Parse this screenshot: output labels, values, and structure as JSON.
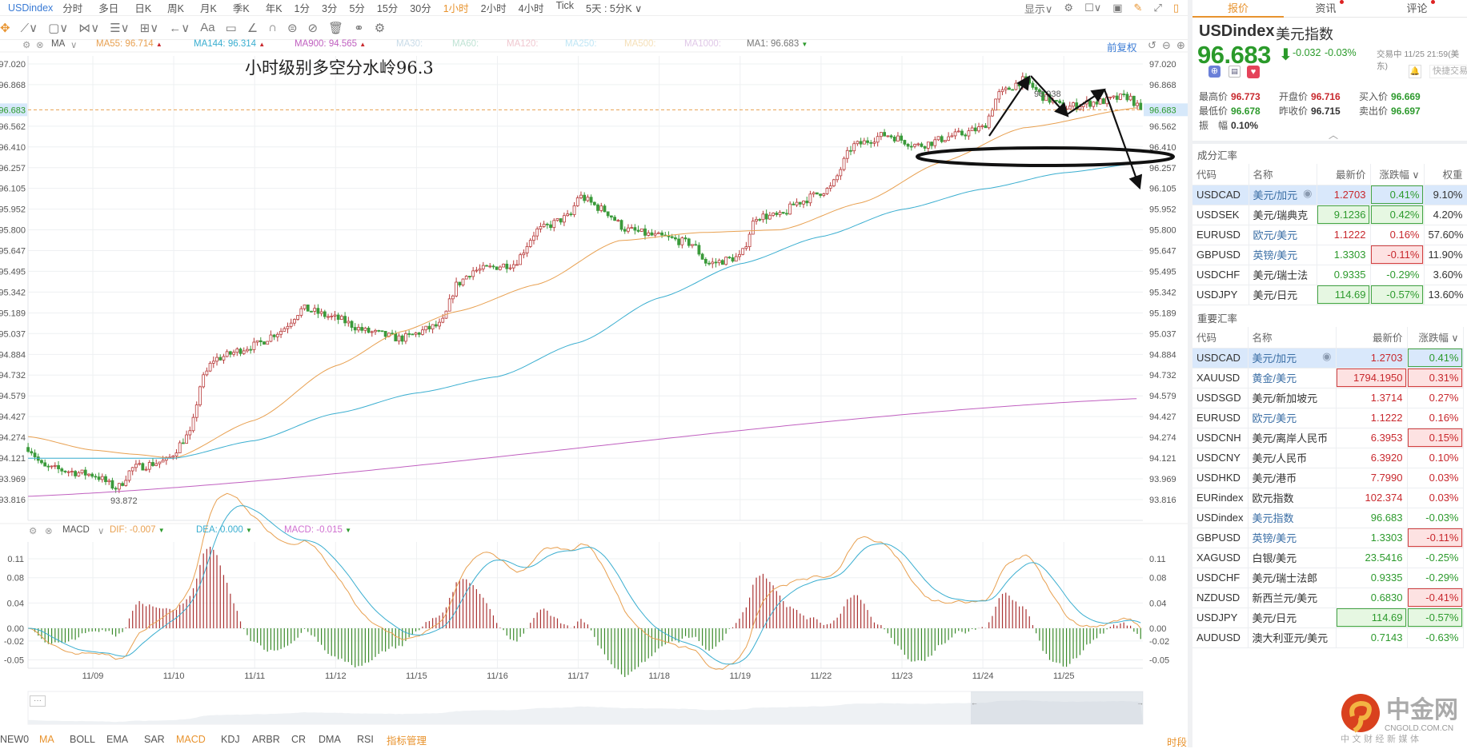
{
  "timeframes": {
    "symbol": "USDindex",
    "items": [
      "分时",
      "多日",
      "日K",
      "周K",
      "月K",
      "季K",
      "年K",
      "1分",
      "3分",
      "5分",
      "15分",
      "30分",
      "1小时",
      "2小时",
      "4小时",
      "Tick",
      "5天 : 5分K ∨"
    ],
    "active": "1小时"
  },
  "top_right": {
    "display_label": "显示∨"
  },
  "ma_legend": {
    "ma": "MA",
    "ma55": "MA55: 96.714",
    "ma144": "MA144: 96.314",
    "ma900": "MA900: 94.565",
    "ma30": "MA30:",
    "ma60": "MA60:",
    "ma120": "MA120:",
    "ma250": "MA250:",
    "ma500": "MA500:",
    "ma1000": "MA1000:",
    "ma1": "MA1: 96.683",
    "adjust": "前复权"
  },
  "macd_legend": {
    "name": "MACD",
    "dif": "DIF: -0.007",
    "dea": "DEA: 0.000",
    "macd": "MACD: -0.015"
  },
  "annotation": {
    "text": "小时级别多空分水岭96.3",
    "high_label": "96.938",
    "low_label": "93.872"
  },
  "current_price": "96.683",
  "price_ticks": [
    "97.020",
    "96.868",
    "96.562",
    "96.410",
    "96.257",
    "96.105",
    "95.952",
    "95.800",
    "95.647",
    "95.495",
    "95.342",
    "95.189",
    "95.037",
    "94.884",
    "94.732",
    "94.579",
    "94.427",
    "94.274",
    "94.121",
    "93.969",
    "93.816"
  ],
  "macd_ticks": [
    "0.11",
    "0.08",
    "0.04",
    "0.00",
    "-0.02",
    "-0.05"
  ],
  "dates": [
    "11/09",
    "11/10",
    "11/11",
    "11/12",
    "11/15",
    "11/16",
    "11/17",
    "11/18",
    "11/19",
    "11/22",
    "11/23",
    "11/24",
    "11/25"
  ],
  "chart_data": {
    "type": "candlestick",
    "price_path": [
      [
        -0.8,
        94.2
      ],
      [
        -0.6,
        94.05
      ],
      [
        0,
        94.0
      ],
      [
        0.3,
        93.9
      ],
      [
        0.5,
        94.05
      ],
      [
        0.9,
        94.1
      ],
      [
        1.2,
        94.3
      ],
      [
        1.35,
        94.7
      ],
      [
        1.5,
        94.85
      ],
      [
        2,
        94.95
      ],
      [
        2.3,
        95.05
      ],
      [
        2.6,
        95.22
      ],
      [
        3,
        95.15
      ],
      [
        3.4,
        95.05
      ],
      [
        3.8,
        95.0
      ],
      [
        4.3,
        95.1
      ],
      [
        4.5,
        95.4
      ],
      [
        4.7,
        95.5
      ],
      [
        5.2,
        95.55
      ],
      [
        5.5,
        95.8
      ],
      [
        5.9,
        95.9
      ],
      [
        6.0,
        96.05
      ],
      [
        6.3,
        95.95
      ],
      [
        6.6,
        95.8
      ],
      [
        7,
        95.75
      ],
      [
        7.4,
        95.7
      ],
      [
        7.6,
        95.55
      ],
      [
        8.0,
        95.6
      ],
      [
        8.2,
        95.9
      ],
      [
        8.5,
        95.9
      ],
      [
        8.7,
        96.0
      ],
      [
        9.1,
        96.1
      ],
      [
        9.4,
        96.42
      ],
      [
        9.8,
        96.5
      ],
      [
        10.2,
        96.42
      ],
      [
        10.7,
        96.5
      ],
      [
        11.0,
        96.55
      ],
      [
        11.2,
        96.8
      ],
      [
        11.5,
        96.9
      ],
      [
        11.8,
        96.76
      ],
      [
        12.0,
        96.7
      ],
      [
        12.4,
        96.74
      ],
      [
        12.8,
        96.78
      ],
      [
        12.95,
        96.683
      ]
    ],
    "ma55": [
      [
        -0.8,
        94.28
      ],
      [
        0,
        94.18
      ],
      [
        0.5,
        94.15
      ],
      [
        1,
        94.12
      ],
      [
        2,
        94.4
      ],
      [
        3,
        94.8
      ],
      [
        3.8,
        95.05
      ],
      [
        4.5,
        95.2
      ],
      [
        5.5,
        95.4
      ],
      [
        6.5,
        95.72
      ],
      [
        7.5,
        95.78
      ],
      [
        8.5,
        95.8
      ],
      [
        9.5,
        96.0
      ],
      [
        10.5,
        96.3
      ],
      [
        11.5,
        96.55
      ],
      [
        12.95,
        96.7
      ]
    ],
    "ma144": [
      [
        -0.8,
        94.12
      ],
      [
        1,
        94.12
      ],
      [
        2,
        94.25
      ],
      [
        3,
        94.45
      ],
      [
        4,
        94.6
      ],
      [
        5,
        94.72
      ],
      [
        6,
        94.97
      ],
      [
        7,
        95.3
      ],
      [
        8,
        95.55
      ],
      [
        9,
        95.75
      ],
      [
        10,
        95.95
      ],
      [
        11,
        96.1
      ],
      [
        12,
        96.22
      ],
      [
        12.95,
        96.29
      ]
    ],
    "ma900": [
      [
        -0.8,
        93.84
      ],
      [
        12.95,
        94.56
      ]
    ],
    "yrange": [
      93.816,
      97.02
    ]
  },
  "bottom_tabs": [
    "NEW0",
    "MA",
    "BOLL",
    "EMA",
    "SAR",
    "MACD",
    "KDJ",
    "ARBR",
    "CR",
    "DMA",
    "RSI",
    "指标管理"
  ],
  "period_label": "时段",
  "nav_more": "···",
  "panel": {
    "tabs": [
      "报价",
      "资讯",
      "评论"
    ],
    "symbol": "USDindex",
    "name": "美元指数",
    "price": "96.683",
    "change": "-0.032",
    "change_pct": "-0.03%",
    "status": "交易中 11/25 21:59(美东)",
    "quick_trade": "快捷交易",
    "stats": [
      {
        "label": "最高价",
        "value": "96.773",
        "color": "red"
      },
      {
        "label": "开盘价",
        "value": "96.716",
        "color": "red"
      },
      {
        "label": "买入价",
        "value": "96.669",
        "color": "green"
      },
      {
        "label": "最低价",
        "value": "96.678",
        "color": "green"
      },
      {
        "label": "昨收价",
        "value": "96.715",
        "color": "dark"
      },
      {
        "label": "卖出价",
        "value": "96.697",
        "color": "green"
      },
      {
        "label": "振　幅",
        "value": "0.10%",
        "color": "dark"
      }
    ],
    "table1": {
      "title": "成分汇率",
      "headers": [
        "代码",
        "名称",
        "最新价",
        "涨跌幅 ∨",
        "权重"
      ],
      "rows": [
        {
          "code": "USDCAD",
          "name": "美元/加元",
          "price": "1.2703",
          "chg": "0.41%",
          "w": "9.10%",
          "pc": "red",
          "cc": "green",
          "pb": "",
          "cb": "boxg",
          "link": true,
          "sel": true,
          "eye": true
        },
        {
          "code": "USDSEK",
          "name": "美元/瑞典克",
          "price": "9.1236",
          "chg": "0.42%",
          "w": "4.20%",
          "pc": "green",
          "cc": "green",
          "pb": "boxg",
          "cb": "boxg",
          "link": false
        },
        {
          "code": "EURUSD",
          "name": "欧元/美元",
          "price": "1.1222",
          "chg": "0.16%",
          "w": "57.60%",
          "pc": "red",
          "cc": "red",
          "pb": "",
          "cb": "",
          "link": true
        },
        {
          "code": "GBPUSD",
          "name": "英镑/美元",
          "price": "1.3303",
          "chg": "-0.11%",
          "w": "11.90%",
          "pc": "green",
          "cc": "red",
          "pb": "",
          "cb": "boxr",
          "link": true
        },
        {
          "code": "USDCHF",
          "name": "美元/瑞士法",
          "price": "0.9335",
          "chg": "-0.29%",
          "w": "3.60%",
          "pc": "green",
          "cc": "green",
          "pb": "",
          "cb": "",
          "link": false
        },
        {
          "code": "USDJPY",
          "name": "美元/日元",
          "price": "114.69",
          "chg": "-0.57%",
          "w": "13.60%",
          "pc": "green",
          "cc": "green",
          "pb": "boxg",
          "cb": "boxg",
          "link": false
        }
      ]
    },
    "table2": {
      "title": "重要汇率",
      "headers": [
        "代码",
        "名称",
        "最新价",
        "涨跌幅 ∨"
      ],
      "rows": [
        {
          "code": "USDCAD",
          "name": "美元/加元",
          "price": "1.2703",
          "chg": "0.41%",
          "pc": "red",
          "cc": "green",
          "pb": "",
          "cb": "boxg",
          "link": true,
          "sel": true,
          "eye": true
        },
        {
          "code": "XAUUSD",
          "name": "黄金/美元",
          "price": "1794.1950",
          "chg": "0.31%",
          "pc": "red",
          "cc": "red",
          "pb": "boxr",
          "cb": "boxr",
          "link": true
        },
        {
          "code": "USDSGD",
          "name": "美元/新加坡元",
          "price": "1.3714",
          "chg": "0.27%",
          "pc": "red",
          "cc": "red",
          "pb": "",
          "cb": "",
          "link": false
        },
        {
          "code": "EURUSD",
          "name": "欧元/美元",
          "price": "1.1222",
          "chg": "0.16%",
          "pc": "red",
          "cc": "red",
          "pb": "",
          "cb": "",
          "link": true
        },
        {
          "code": "USDCNH",
          "name": "美元/离岸人民币",
          "price": "6.3953",
          "chg": "0.15%",
          "pc": "red",
          "cc": "red",
          "pb": "",
          "cb": "boxr",
          "link": false
        },
        {
          "code": "USDCNY",
          "name": "美元/人民币",
          "price": "6.3920",
          "chg": "0.10%",
          "pc": "red",
          "cc": "red",
          "pb": "",
          "cb": "",
          "link": false
        },
        {
          "code": "USDHKD",
          "name": "美元/港币",
          "price": "7.7990",
          "chg": "0.03%",
          "pc": "red",
          "cc": "red",
          "pb": "",
          "cb": "",
          "link": false
        },
        {
          "code": "EURindex",
          "name": "欧元指数",
          "price": "102.374",
          "chg": "0.03%",
          "pc": "red",
          "cc": "red",
          "pb": "",
          "cb": "",
          "link": false
        },
        {
          "code": "USDindex",
          "name": "美元指数",
          "price": "96.683",
          "chg": "-0.03%",
          "pc": "green",
          "cc": "green",
          "pb": "",
          "cb": "",
          "link": true
        },
        {
          "code": "GBPUSD",
          "name": "英镑/美元",
          "price": "1.3303",
          "chg": "-0.11%",
          "pc": "green",
          "cc": "red",
          "pb": "",
          "cb": "boxr",
          "link": true
        },
        {
          "code": "XAGUSD",
          "name": "白银/美元",
          "price": "23.5416",
          "chg": "-0.25%",
          "pc": "green",
          "cc": "green",
          "pb": "",
          "cb": "",
          "link": false
        },
        {
          "code": "USDCHF",
          "name": "美元/瑞士法郎",
          "price": "0.9335",
          "chg": "-0.29%",
          "pc": "green",
          "cc": "green",
          "pb": "",
          "cb": "",
          "link": false
        },
        {
          "code": "NZDUSD",
          "name": "新西兰元/美元",
          "price": "0.6830",
          "chg": "-0.41%",
          "pc": "green",
          "cc": "red",
          "pb": "",
          "cb": "boxr",
          "link": false
        },
        {
          "code": "USDJPY",
          "name": "美元/日元",
          "price": "114.69",
          "chg": "-0.57%",
          "pc": "green",
          "cc": "green",
          "pb": "boxg",
          "cb": "boxg",
          "link": false
        },
        {
          "code": "AUDUSD",
          "name": "澳大利亚元/美元",
          "price": "0.7143",
          "chg": "-0.63%",
          "pc": "green",
          "cc": "green",
          "pb": "",
          "cb": "",
          "link": false
        }
      ]
    }
  },
  "logo": {
    "name": "中金网",
    "domain": "CNGOLD.COM.CN",
    "slogan": "中 文 财 经 新 媒 体"
  },
  "colors": {
    "up": "#c8282d",
    "down": "#2d9a2d",
    "ma55": "#e8a050",
    "ma144": "#3aaed0",
    "ma900": "#c060c0",
    "accent": "#e8932e"
  }
}
